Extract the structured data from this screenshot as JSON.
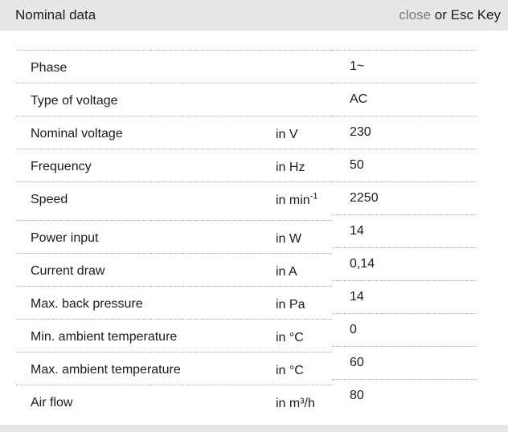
{
  "header": {
    "title": "Nominal data",
    "close_label": "close",
    "esc_hint": " or Esc Key"
  },
  "table": {
    "rows": [
      {
        "label": "Phase",
        "unit": "",
        "value": "1~"
      },
      {
        "label": "Type of voltage",
        "unit": "",
        "value": "AC"
      },
      {
        "label": "Nominal voltage",
        "unit": "in V",
        "value": "230"
      },
      {
        "label": "Frequency",
        "unit": "in Hz",
        "value": "50"
      },
      {
        "label": "Speed",
        "unit": "in min",
        "unit_sup": "-1",
        "value": "2250"
      },
      {
        "label": "Power input",
        "unit": "in W",
        "value": "14"
      },
      {
        "label": "Current draw",
        "unit": "in A",
        "value": "0,14"
      },
      {
        "label": "Max. back pressure",
        "unit": "in Pa",
        "value": "14"
      },
      {
        "label": "Min. ambient temperature",
        "unit": "in °C",
        "value": "0"
      },
      {
        "label": "Max. ambient temperature",
        "unit": "in °C",
        "value": "60"
      },
      {
        "label": "Air flow",
        "unit": "in m³/h",
        "value": "80"
      }
    ]
  },
  "colors": {
    "header_bg": "#e7e7e7",
    "footer_bg": "#e7e7e7",
    "close_text": "#7b7b7b",
    "divider": "#ababab",
    "text": "#1b1b1b"
  }
}
